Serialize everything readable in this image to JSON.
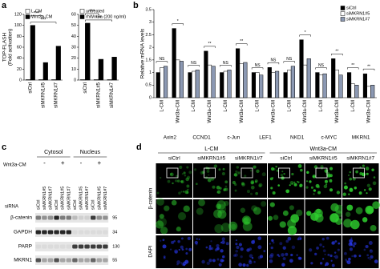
{
  "panel_labels": [
    "a",
    "b",
    "c",
    "d"
  ],
  "chart_data": [
    {
      "type": "bar",
      "ylabel": [
        "TOP-FLASH",
        "(Fold activation)"
      ],
      "categories": [
        "siCtrl",
        "siMKRN1#5",
        "siMKRN1#7"
      ],
      "series": [
        {
          "name": "L-CM",
          "color": "#ffffff",
          "values": [
            1,
            0.8,
            0.9
          ]
        },
        {
          "name": "Wnt3a-CM",
          "color": "#000000",
          "values": [
            100,
            32,
            62
          ]
        }
      ],
      "ylim": [
        0,
        120
      ],
      "yticks": [
        0,
        20,
        40,
        60,
        80,
        100,
        120
      ],
      "significance": [
        "***",
        "***"
      ]
    },
    {
      "type": "bar",
      "categories": [
        "siCtrl",
        "siMKRN1#5",
        "siMKRN1#7"
      ],
      "series": [
        {
          "name": "untreated",
          "color": "#ffffff",
          "values": [
            0.5,
            0.4,
            0.4
          ]
        },
        {
          "name": "rhWnt3a (200 ng/ml)",
          "color": "#000000",
          "values": [
            52,
            19,
            21
          ]
        }
      ],
      "ylim": [
        0,
        60
      ],
      "yticks": [
        0,
        10,
        20,
        30,
        40,
        50,
        60
      ],
      "significance": [
        "***",
        "***"
      ]
    },
    {
      "type": "bar",
      "ylabel": [
        "Relative mRNA levels"
      ],
      "categories": [
        "L-CM",
        "Wnt3a-CM",
        "L-CM",
        "Wnt3a-CM",
        "L-CM",
        "Wnt3a-CM",
        "L-CM",
        "Wnt3a-CM",
        "L-CM",
        "Wnt3a-CM",
        "L-CM",
        "Wnt3a-CM",
        "L-CM",
        "Wnt3a-CM"
      ],
      "groups": [
        "Axin2",
        "CCND1",
        "c-Jun",
        "LEF1",
        "NKD1",
        "c-MYC",
        "MKRN1"
      ],
      "series": [
        {
          "name": "siCtrl",
          "color": "#000000",
          "values": [
            1,
            2.75,
            1,
            1.85,
            1,
            1.95,
            1,
            1.2,
            1,
            2.3,
            1,
            1.55,
            1,
            0.95
          ]
        },
        {
          "name": "siMKRN1#5",
          "color": "#ffffff",
          "values": [
            1.2,
            1.5,
            1.05,
            1.3,
            1.05,
            1.35,
            1,
            1,
            1.1,
            1.3,
            0.9,
            1.1,
            0.55,
            0.45
          ]
        },
        {
          "name": "siMKRN1#7",
          "color": "#8c99b3",
          "values": [
            1.25,
            1.45,
            1.1,
            1.25,
            1.1,
            1.4,
            0.9,
            1.05,
            1.25,
            1.55,
            0.95,
            0.9,
            0.5,
            0.5
          ]
        }
      ],
      "ylim": [
        0,
        3.5
      ],
      "yticks": [
        0,
        0.5,
        1,
        1.5,
        2,
        2.5,
        3,
        3.5
      ],
      "significance": [
        "NS",
        "*",
        "NS",
        "**",
        "NS",
        "**",
        "NS",
        "NS",
        "NS",
        "*",
        "NS",
        "**",
        "**",
        "**"
      ]
    }
  ],
  "blot": {
    "treatment_label": "Wnt3a-CM",
    "fractions": [
      "Cytosol",
      "Nucleus"
    ],
    "treatments": [
      "-",
      "+"
    ],
    "siRNA_label": "siRNA",
    "lanes": [
      "siCtrl",
      "siMKRN1#5",
      "siMKRN1#7"
    ],
    "proteins": [
      {
        "name": "β-catenin",
        "mw": 95
      },
      {
        "name": "GAPDH",
        "mw": 34
      },
      {
        "name": "PARP",
        "mw": 130
      },
      {
        "name": "MKRN1",
        "mw": 55
      }
    ]
  },
  "microscopy": {
    "groups": [
      "L-CM",
      "Wnt3a-CM"
    ],
    "columns": [
      "siCtrl",
      "siMKRN1#5",
      "siMKRN1#7"
    ],
    "rows": [
      "β-catenin",
      "DAPI"
    ]
  }
}
